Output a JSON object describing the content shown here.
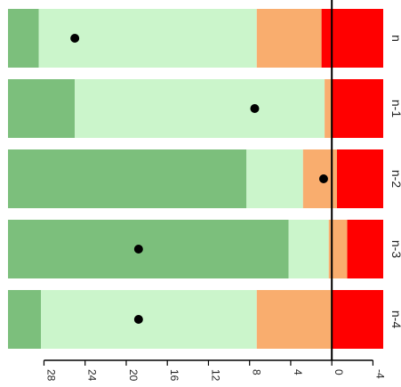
{
  "chart_data": {
    "type": "bar",
    "orientation": "rotated-horizontal-stacked-bands",
    "value_axis": {
      "ticks": [
        28,
        24,
        20,
        16,
        12,
        8,
        4,
        0,
        -4
      ],
      "range": [
        31.5,
        -5
      ]
    },
    "categories": [
      "n",
      "n-1",
      "n-2",
      "n-3",
      "n-4"
    ],
    "bands": [
      {
        "category": "n",
        "segments": [
          {
            "from": 31.5,
            "to": 28.5,
            "color": "#7cbf7c"
          },
          {
            "from": 28.5,
            "to": 7.3,
            "color": "#cbf5cb"
          },
          {
            "from": 7.3,
            "to": 1.0,
            "color": "#f9ad6e"
          },
          {
            "from": 1.0,
            "to": -5.0,
            "color": "#ff0000"
          }
        ],
        "point": 25.0
      },
      {
        "category": "n-1",
        "segments": [
          {
            "from": 31.5,
            "to": 25.0,
            "color": "#7cbf7c"
          },
          {
            "from": 25.0,
            "to": 0.7,
            "color": "#cbf5cb"
          },
          {
            "from": 0.7,
            "to": 0.0,
            "color": "#f9ad6e"
          },
          {
            "from": 0.0,
            "to": -5.0,
            "color": "#ff0000"
          }
        ],
        "point": 7.5
      },
      {
        "category": "n-2",
        "segments": [
          {
            "from": 31.5,
            "to": 8.3,
            "color": "#7cbf7c"
          },
          {
            "from": 8.3,
            "to": 2.8,
            "color": "#cbf5cb"
          },
          {
            "from": 2.8,
            "to": -0.5,
            "color": "#f9ad6e"
          },
          {
            "from": -0.5,
            "to": -5.0,
            "color": "#ff0000"
          }
        ],
        "point": 0.8
      },
      {
        "category": "n-3",
        "segments": [
          {
            "from": 31.5,
            "to": 4.2,
            "color": "#7cbf7c"
          },
          {
            "from": 4.2,
            "to": 0.3,
            "color": "#cbf5cb"
          },
          {
            "from": 0.3,
            "to": -1.5,
            "color": "#f9ad6e"
          },
          {
            "from": -1.5,
            "to": -5.0,
            "color": "#ff0000"
          }
        ],
        "point": 18.8
      },
      {
        "category": "n-4",
        "segments": [
          {
            "from": 31.5,
            "to": 28.3,
            "color": "#7cbf7c"
          },
          {
            "from": 28.3,
            "to": 7.3,
            "color": "#cbf5cb"
          },
          {
            "from": 7.3,
            "to": 0.0,
            "color": "#f9ad6e"
          },
          {
            "from": 0.0,
            "to": -5.0,
            "color": "#ff0000"
          }
        ],
        "point": 18.8
      }
    ],
    "reference_line": 0,
    "colors": {
      "dark_green": "#7cbf7c",
      "light_green": "#cbf5cb",
      "orange": "#f9ad6e",
      "red": "#ff0000",
      "point": "#000000",
      "axis": "#000000"
    },
    "grid": false,
    "legend": "none"
  }
}
